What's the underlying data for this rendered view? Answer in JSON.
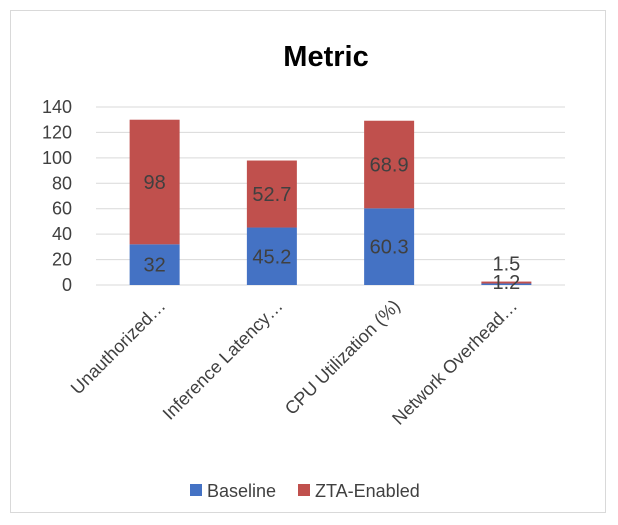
{
  "chart_data": {
    "type": "bar",
    "stacked": true,
    "title": "Metric",
    "categories": [
      "Unauthorized…",
      "Inference Latency…",
      "CPU Utilization (%)",
      "Network Overhead…"
    ],
    "series": [
      {
        "name": "Baseline",
        "values": [
          32,
          45.2,
          60.3,
          1.2
        ],
        "labels": [
          "32",
          "45.2",
          "60.3",
          "1.2"
        ],
        "color": "#4472c4"
      },
      {
        "name": "ZTA-Enabled",
        "values": [
          98,
          52.7,
          68.9,
          1.5
        ],
        "labels": [
          "98",
          "52.7",
          "68.9",
          "1.5"
        ],
        "color": "#c0504d"
      }
    ],
    "ylim": [
      0,
      140
    ],
    "yticks": [
      "0",
      "20",
      "40",
      "60",
      "80",
      "100",
      "120",
      "140"
    ],
    "xlabel": "",
    "ylabel": "",
    "grid": true,
    "legend_position": "bottom"
  },
  "colors": {
    "gridline": "#d9d9d9",
    "text": "#404040"
  }
}
